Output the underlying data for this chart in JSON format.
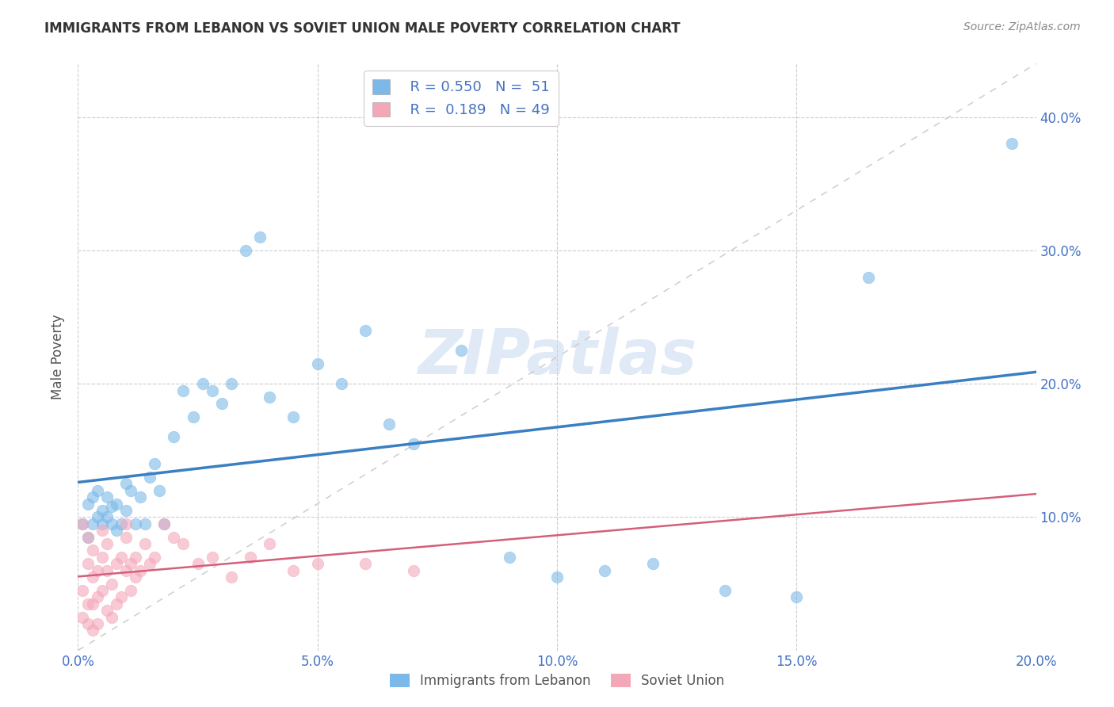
{
  "title": "IMMIGRANTS FROM LEBANON VS SOVIET UNION MALE POVERTY CORRELATION CHART",
  "source": "Source: ZipAtlas.com",
  "xlabel_lebanon": "Immigrants from Lebanon",
  "xlabel_soviet": "Soviet Union",
  "ylabel": "Male Poverty",
  "legend_R_lebanon": "R = 0.550",
  "legend_N_lebanon": "N =  51",
  "legend_R_soviet": "R =  0.189",
  "legend_N_soviet": "N = 49",
  "color_lebanon": "#7cb9e8",
  "color_soviet": "#f4a7b9",
  "color_lebanon_line": "#3a7fc1",
  "color_soviet_line": "#d45f7a",
  "color_diag": "#cccccc",
  "xlim": [
    0.0,
    0.2
  ],
  "ylim": [
    0.0,
    0.44
  ],
  "xticks": [
    0.0,
    0.05,
    0.1,
    0.15,
    0.2
  ],
  "yticks": [
    0.1,
    0.2,
    0.3,
    0.4
  ],
  "lebanon_x": [
    0.001,
    0.002,
    0.002,
    0.003,
    0.003,
    0.004,
    0.004,
    0.005,
    0.005,
    0.006,
    0.006,
    0.007,
    0.007,
    0.008,
    0.008,
    0.009,
    0.01,
    0.01,
    0.011,
    0.012,
    0.013,
    0.014,
    0.015,
    0.016,
    0.017,
    0.018,
    0.02,
    0.022,
    0.024,
    0.026,
    0.028,
    0.03,
    0.032,
    0.035,
    0.038,
    0.04,
    0.045,
    0.05,
    0.055,
    0.06,
    0.065,
    0.07,
    0.08,
    0.09,
    0.1,
    0.11,
    0.12,
    0.135,
    0.15,
    0.165,
    0.195
  ],
  "lebanon_y": [
    0.095,
    0.085,
    0.11,
    0.095,
    0.115,
    0.1,
    0.12,
    0.095,
    0.105,
    0.1,
    0.115,
    0.108,
    0.095,
    0.09,
    0.11,
    0.095,
    0.105,
    0.125,
    0.12,
    0.095,
    0.115,
    0.095,
    0.13,
    0.14,
    0.12,
    0.095,
    0.16,
    0.195,
    0.175,
    0.2,
    0.195,
    0.185,
    0.2,
    0.3,
    0.31,
    0.19,
    0.175,
    0.215,
    0.2,
    0.24,
    0.17,
    0.155,
    0.225,
    0.07,
    0.055,
    0.06,
    0.065,
    0.045,
    0.04,
    0.28,
    0.38
  ],
  "soviet_x": [
    0.001,
    0.001,
    0.001,
    0.002,
    0.002,
    0.002,
    0.002,
    0.003,
    0.003,
    0.003,
    0.003,
    0.004,
    0.004,
    0.004,
    0.005,
    0.005,
    0.005,
    0.006,
    0.006,
    0.006,
    0.007,
    0.007,
    0.008,
    0.008,
    0.009,
    0.009,
    0.01,
    0.01,
    0.01,
    0.011,
    0.011,
    0.012,
    0.012,
    0.013,
    0.014,
    0.015,
    0.016,
    0.018,
    0.02,
    0.022,
    0.025,
    0.028,
    0.032,
    0.036,
    0.04,
    0.045,
    0.05,
    0.06,
    0.07
  ],
  "soviet_y": [
    0.095,
    0.045,
    0.025,
    0.085,
    0.065,
    0.035,
    0.02,
    0.075,
    0.055,
    0.035,
    0.015,
    0.06,
    0.04,
    0.02,
    0.09,
    0.07,
    0.045,
    0.08,
    0.06,
    0.03,
    0.05,
    0.025,
    0.065,
    0.035,
    0.07,
    0.04,
    0.06,
    0.085,
    0.095,
    0.065,
    0.045,
    0.07,
    0.055,
    0.06,
    0.08,
    0.065,
    0.07,
    0.095,
    0.085,
    0.08,
    0.065,
    0.07,
    0.055,
    0.07,
    0.08,
    0.06,
    0.065,
    0.065,
    0.06
  ],
  "watermark": "ZIPatlas",
  "background_color": "#ffffff"
}
